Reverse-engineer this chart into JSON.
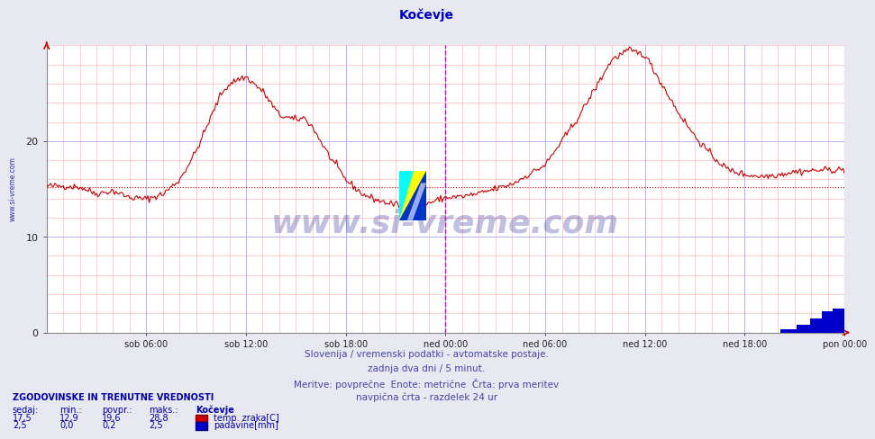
{
  "title": "Kočevje",
  "title_color": "#0000cc",
  "bg_color": "#e8e8f0",
  "plot_bg_color": "#ffffff",
  "grid_color_major": "#aaaaff",
  "grid_color_minor": "#ffaaaa",
  "x_labels": [
    "sob 06:00",
    "sob 12:00",
    "sob 18:00",
    "ned 00:00",
    "ned 06:00",
    "ned 12:00",
    "ned 18:00",
    "pon 00:00"
  ],
  "y_ticks": [
    0,
    10,
    20
  ],
  "y_max": 30,
  "avg_line_value": 15.2,
  "avg_line_color": "#cc0000",
  "temp_line_color": "#cc0000",
  "rain_bar_color": "#0000cc",
  "vertical_line_color": "#cc00cc",
  "vertical_line2_color": "#4444cc",
  "watermark_text": "www.si-vreme.com",
  "watermark_color": "#000088",
  "watermark_alpha": 0.25,
  "left_text": "www.si-vreme.com",
  "left_text_color": "#0000aa",
  "subtitle1": "Slovenija / vremenski podatki - avtomatske postaje.",
  "subtitle2": "zadnja dva dni / 5 minut.",
  "subtitle3": "Meritve: povprečne  Enote: metrične  Črta: prva meritev",
  "subtitle4": "navpična črta - razdelek 24 ur",
  "subtitle_color": "#4444aa",
  "legend_title": "ZGODOVINSKE IN TRENUTNE VREDNOSTI",
  "legend_headers": [
    "sedaj:",
    "min.:",
    "povpr.:",
    "maks.:"
  ],
  "legend_row1": [
    "17,5",
    "12,9",
    "19,6",
    "28,8",
    "Kočevje",
    "temp. zraka[C]"
  ],
  "legend_row2": [
    "2,5",
    "0,0",
    "0,2",
    "2,5",
    "",
    "padavine[mm]"
  ],
  "legend_color": "#0000aa",
  "arrow_color": "#cc0000"
}
